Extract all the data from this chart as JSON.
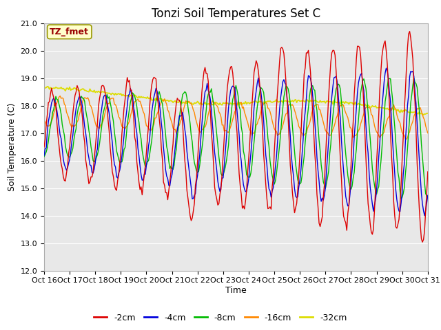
{
  "title": "Tonzi Soil Temperatures Set C",
  "xlabel": "Time",
  "ylabel": "Soil Temperature (C)",
  "ylim": [
    12.0,
    21.0
  ],
  "yticks": [
    12.0,
    13.0,
    14.0,
    15.0,
    16.0,
    17.0,
    18.0,
    19.0,
    20.0,
    21.0
  ],
  "xtick_labels": [
    "Oct 16",
    "Oct 17",
    "Oct 18",
    "Oct 19",
    "Oct 20",
    "Oct 21",
    "Oct 22",
    "Oct 23",
    "Oct 24",
    "Oct 25",
    "Oct 26",
    "Oct 27",
    "Oct 28",
    "Oct 29",
    "Oct 30",
    "Oct 31"
  ],
  "legend_labels": [
    "-2cm",
    "-4cm",
    "-8cm",
    "-16cm",
    "-32cm"
  ],
  "legend_colors": [
    "#dd0000",
    "#0000dd",
    "#00bb00",
    "#ff8800",
    "#dddd00"
  ],
  "annotation_text": "TZ_fmet",
  "annotation_color": "#990000",
  "annotation_bg": "#ffffcc",
  "annotation_edge": "#999900",
  "plot_bg_color": "#e8e8e8",
  "grid_color": "#ffffff",
  "title_fontsize": 12,
  "label_fontsize": 9,
  "tick_fontsize": 8
}
